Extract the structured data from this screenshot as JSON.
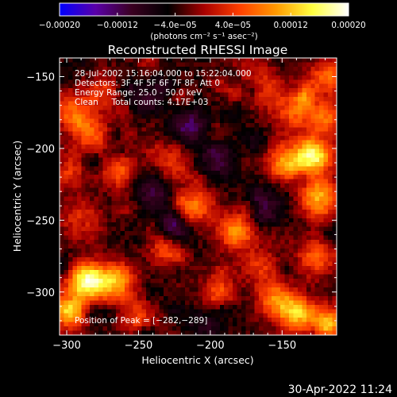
{
  "chart_data": {
    "type": "heatmap",
    "title": "Reconstructed RHESSI Image",
    "xlabel": "Heliocentric X (arcsec)",
    "ylabel": "Heliocentric Y (arcsec)",
    "xlim": [
      -305,
      -112
    ],
    "ylim": [
      -330,
      -137
    ],
    "xticks": [
      -300,
      -250,
      -200,
      -150
    ],
    "xtick_labels": [
      "−300",
      "−250",
      "−200",
      "−150"
    ],
    "yticks": [
      -150,
      -200,
      -250,
      -300
    ],
    "ytick_labels": [
      "−150",
      "−200",
      "−250",
      "−300"
    ],
    "colorbar": {
      "range": [
        -0.0002,
        0.0002
      ],
      "ticks": [
        -0.0002,
        -0.00012,
        -4e-05,
        4e-05,
        0.00012,
        0.0002
      ],
      "tick_labels": [
        "−0.00020",
        "−0.00012",
        "−4.0e−05",
        "4.0e−05",
        "0.00012",
        "0.00020"
      ],
      "label": "(photons cm⁻² s⁻¹ asec⁻²)",
      "colors": [
        "#0000ff",
        "#5a00a8",
        "#3a0020",
        "#000000",
        "#a80000",
        "#ff4000",
        "#ff9a00",
        "#ffff40",
        "#ffffff"
      ]
    },
    "annotations": {
      "time": "28-Jul-2002 15:16:04.000 to 15:22:04.000",
      "detectors": "Detectors: 3F 4F 5F 6F 7F 8F, Att 0",
      "energy": "Energy Range: 25.0 - 50.0 keV",
      "clean": "Clean     Total counts: 4.17E+03",
      "peak": "Position of Peak = [−282,−289]"
    },
    "peak": [
      -282,
      -289
    ],
    "hotspots": [
      {
        "x": -286,
        "y": -292,
        "v": 0.0002
      },
      {
        "x": -298,
        "y": -312,
        "v": 0.00018
      },
      {
        "x": -266,
        "y": -294,
        "v": 0.00014
      },
      {
        "x": -283,
        "y": -190,
        "v": 0.0001
      },
      {
        "x": -298,
        "y": -173,
        "v": 9e-05
      },
      {
        "x": -263,
        "y": -215,
        "v": 0.00011
      },
      {
        "x": -276,
        "y": -160,
        "v": 8e-05
      },
      {
        "x": -290,
        "y": -250,
        "v": 9e-05
      },
      {
        "x": -226,
        "y": -212,
        "v": 7e-05
      },
      {
        "x": -210,
        "y": -243,
        "v": 0.00012
      },
      {
        "x": -182,
        "y": -258,
        "v": 0.00013
      },
      {
        "x": -230,
        "y": -270,
        "v": 9e-05
      },
      {
        "x": -195,
        "y": -300,
        "v": 8e-05
      },
      {
        "x": -165,
        "y": -282,
        "v": 7e-05
      },
      {
        "x": -128,
        "y": -205,
        "v": 0.0002
      },
      {
        "x": -124,
        "y": -235,
        "v": 0.00017
      },
      {
        "x": -148,
        "y": -210,
        "v": 0.00012
      },
      {
        "x": -120,
        "y": -180,
        "v": 0.00011
      },
      {
        "x": -142,
        "y": -175,
        "v": 9e-05
      },
      {
        "x": -118,
        "y": -150,
        "v": 0.0001
      },
      {
        "x": -140,
        "y": -315,
        "v": 0.00015
      },
      {
        "x": -118,
        "y": -322,
        "v": 0.00014
      },
      {
        "x": -155,
        "y": -305,
        "v": 0.00011
      },
      {
        "x": -125,
        "y": -275,
        "v": 0.0001
      },
      {
        "x": -250,
        "y": -318,
        "v": 8e-05
      },
      {
        "x": -180,
        "y": -150,
        "v": 6e-05
      },
      {
        "x": -160,
        "y": -160,
        "v": 7e-05
      },
      {
        "x": -300,
        "y": -215,
        "v": 8e-05
      }
    ],
    "coldspots": [
      {
        "x": -215,
        "y": -185,
        "v": -9e-05
      },
      {
        "x": -240,
        "y": -230,
        "v": -8e-05
      },
      {
        "x": -195,
        "y": -208,
        "v": -7e-05
      },
      {
        "x": -225,
        "y": -260,
        "v": -8e-05
      },
      {
        "x": -160,
        "y": -240,
        "v": -6e-05
      },
      {
        "x": -245,
        "y": -165,
        "v": -6e-05
      },
      {
        "x": -205,
        "y": -325,
        "v": -6e-05
      }
    ]
  },
  "footer": {
    "date": "30-Apr-2022 11:24"
  }
}
